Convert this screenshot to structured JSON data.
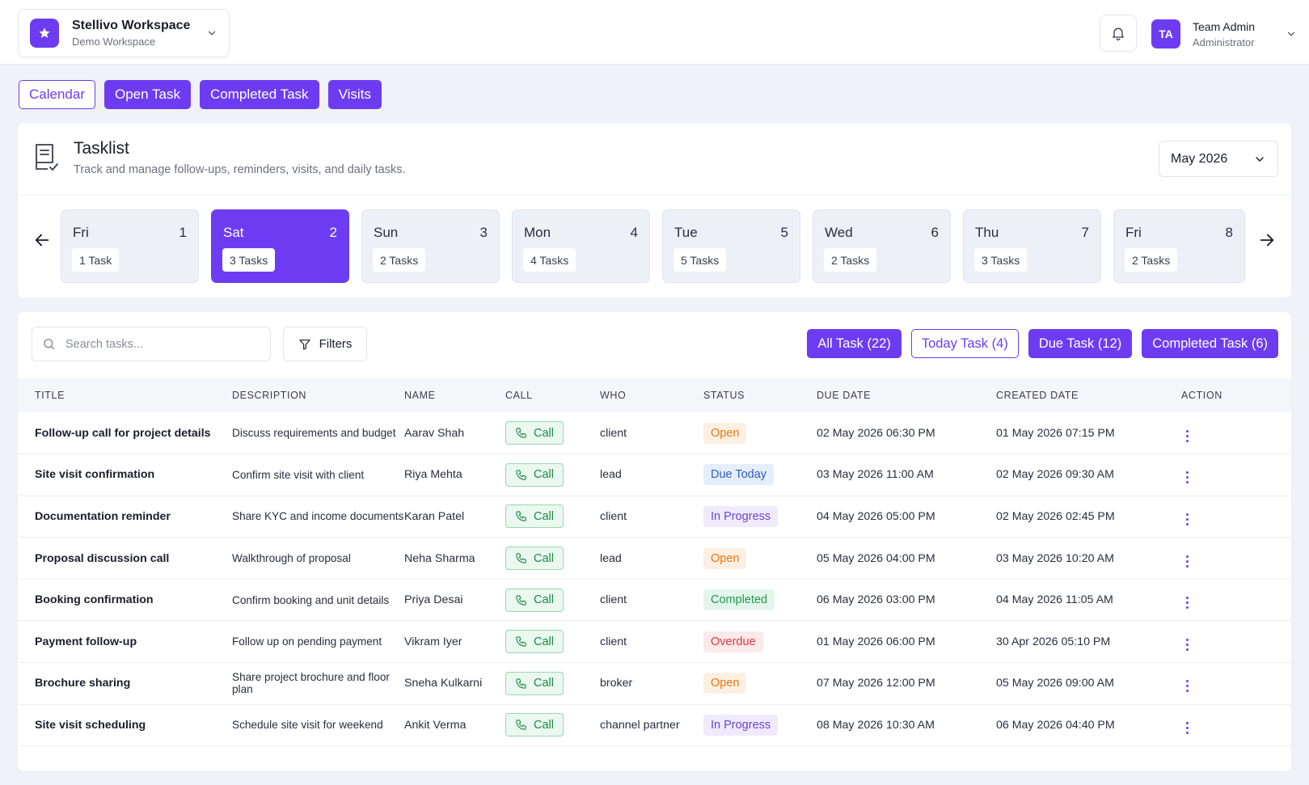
{
  "workspace": {
    "name": "Stellivo Workspace",
    "subtitle": "Demo Workspace"
  },
  "user": {
    "initials": "TA",
    "name": "Team Admin",
    "role": "Administrator"
  },
  "tabs": [
    {
      "label": "Calendar",
      "active": false
    },
    {
      "label": "Open Task",
      "active": true
    },
    {
      "label": "Completed Task",
      "active": true
    },
    {
      "label": "Visits",
      "active": true
    }
  ],
  "tasklist": {
    "title": "Tasklist",
    "subtitle": "Track and manage follow-ups, reminders, visits, and daily tasks.",
    "month": "May 2026"
  },
  "days": [
    {
      "name": "Fri",
      "num": "1",
      "count": "1 Task"
    },
    {
      "name": "Sat",
      "num": "2",
      "count": "3 Tasks",
      "selected": true
    },
    {
      "name": "Sun",
      "num": "3",
      "count": "2 Tasks"
    },
    {
      "name": "Mon",
      "num": "4",
      "count": "4 Tasks"
    },
    {
      "name": "Tue",
      "num": "5",
      "count": "5 Tasks"
    },
    {
      "name": "Wed",
      "num": "6",
      "count": "2 Tasks"
    },
    {
      "name": "Thu",
      "num": "7",
      "count": "3 Tasks"
    },
    {
      "name": "Fri",
      "num": "8",
      "count": "2 Tasks"
    }
  ],
  "search": {
    "placeholder": "Search tasks..."
  },
  "filters_label": "Filters",
  "filter_tabs": [
    {
      "label": "All Task (22)"
    },
    {
      "label": "Today Task (4)"
    },
    {
      "label": "Due Task (12)"
    },
    {
      "label": "Completed Task (6)"
    }
  ],
  "table": {
    "headers": [
      "TITLE",
      "DESCRIPTION",
      "NAME",
      "CALL",
      "WHO",
      "STATUS",
      "DUE DATE",
      "CREATED DATE",
      "ACTION"
    ],
    "call_label": "Call",
    "rows": [
      {
        "title": "Follow-up call for project details",
        "desc": "Discuss requirements and budget",
        "name": "Aarav Shah",
        "who": "client",
        "status": "Open",
        "status_type": "open",
        "due": "02 May 2026 06:30 PM",
        "created": "01 May 2026 07:15 PM"
      },
      {
        "title": "Site visit confirmation",
        "desc": "Confirm site visit with client",
        "name": "Riya Mehta",
        "who": "lead",
        "status": "Due Today",
        "status_type": "due",
        "due": "03 May 2026 11:00 AM",
        "created": "02 May 2026 09:30 AM"
      },
      {
        "title": "Documentation reminder",
        "desc": "Share KYC and income documents",
        "name": "Karan Patel",
        "who": "client",
        "status": "In Progress",
        "status_type": "prog",
        "due": "04 May 2026 05:00 PM",
        "created": "02 May 2026 02:45 PM"
      },
      {
        "title": "Proposal discussion call",
        "desc": "Walkthrough of proposal",
        "name": "Neha Sharma",
        "who": "lead",
        "status": "Open",
        "status_type": "open",
        "due": "05 May 2026 04:00 PM",
        "created": "03 May 2026 10:20 AM"
      },
      {
        "title": "Booking confirmation",
        "desc": "Confirm booking and unit details",
        "name": "Priya Desai",
        "who": "client",
        "status": "Completed",
        "status_type": "done",
        "due": "06 May 2026 03:00 PM",
        "created": "04 May 2026 11:05 AM"
      },
      {
        "title": "Payment follow-up",
        "desc": "Follow up on pending payment",
        "name": "Vikram Iyer",
        "who": "client",
        "status": "Overdue",
        "status_type": "over",
        "due": "01 May 2026 06:00 PM",
        "created": "30 Apr 2026 05:10 PM"
      },
      {
        "title": "Brochure sharing",
        "desc": "Share project brochure and floor plan",
        "name": "Sneha Kulkarni",
        "who": "broker",
        "status": "Open",
        "status_type": "open",
        "due": "07 May 2026 12:00 PM",
        "created": "05 May 2026 09:00 AM"
      },
      {
        "title": "Site visit scheduling",
        "desc": "Schedule site visit for weekend",
        "name": "Ankit Verma",
        "who": "channel partner",
        "status": "In Progress",
        "status_type": "prog",
        "due": "08 May 2026 10:30 AM",
        "created": "06 May 2026 04:40 PM"
      }
    ]
  },
  "colors": {
    "accent": "#6d3cf2"
  },
  "icons": [
    "star-icon",
    "chevron-down-icon",
    "bell-icon",
    "tasklist-icon",
    "arrow-left-icon",
    "arrow-right-icon",
    "search-icon",
    "filter-icon",
    "phone-icon",
    "kebab-icon"
  ]
}
